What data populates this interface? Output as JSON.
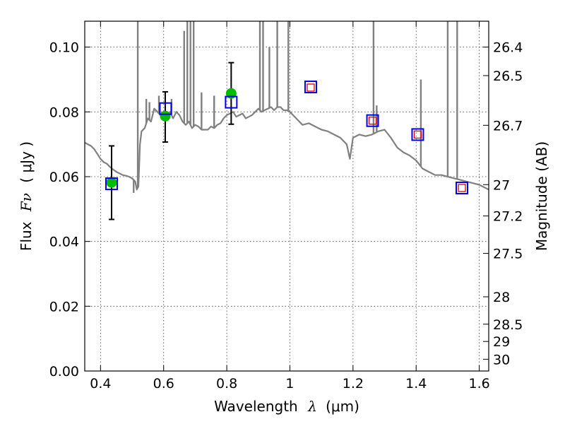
{
  "chart_data": {
    "type": "scatter",
    "title": "",
    "xlabel": {
      "prefix": "Wavelength",
      "symbol": "λ",
      "unit": "(μm)"
    },
    "ylabel": {
      "prefix": "Flux",
      "symbol": "Fν",
      "unit": "( μJy )"
    },
    "ylabel_right": "Magnitude (AB)",
    "xlim": [
      0.35,
      1.63
    ],
    "ylim": [
      0.0,
      0.108
    ],
    "grid": true,
    "xticks": [
      {
        "value": 0.4,
        "label": "0.4"
      },
      {
        "value": 0.6,
        "label": "0.6"
      },
      {
        "value": 0.8,
        "label": "0.8"
      },
      {
        "value": 1.0,
        "label": "1"
      },
      {
        "value": 1.2,
        "label": "1.2"
      },
      {
        "value": 1.4,
        "label": "1.4"
      },
      {
        "value": 1.6,
        "label": "1.6"
      }
    ],
    "yticks": [
      {
        "value": 0.0,
        "label": "0.00"
      },
      {
        "value": 0.02,
        "label": "0.02"
      },
      {
        "value": 0.04,
        "label": "0.04"
      },
      {
        "value": 0.06,
        "label": "0.06"
      },
      {
        "value": 0.08,
        "label": "0.08"
      },
      {
        "value": 0.1,
        "label": "0.10"
      }
    ],
    "yticks_right": [
      {
        "mag": 26.4,
        "label": "26.4"
      },
      {
        "mag": 26.5,
        "label": "26.5"
      },
      {
        "mag": 26.7,
        "label": "26.7"
      },
      {
        "mag": 27,
        "label": "27"
      },
      {
        "mag": 27.2,
        "label": "27.2"
      },
      {
        "mag": 27.5,
        "label": "27.5"
      },
      {
        "mag": 28,
        "label": "28"
      },
      {
        "mag": 28.5,
        "label": "28.5"
      },
      {
        "mag": 29,
        "label": "29"
      },
      {
        "mag": 30,
        "label": "30"
      }
    ],
    "model_spectrum": {
      "color": "#808080",
      "x": [
        0.35,
        0.36,
        0.37,
        0.38,
        0.39,
        0.4,
        0.41,
        0.42,
        0.43,
        0.44,
        0.45,
        0.46,
        0.47,
        0.48,
        0.49,
        0.5,
        0.51,
        0.515,
        0.52,
        0.525,
        0.53,
        0.54,
        0.55,
        0.56,
        0.57,
        0.58,
        0.59,
        0.6,
        0.61,
        0.62,
        0.63,
        0.64,
        0.65,
        0.66,
        0.67,
        0.68,
        0.69,
        0.7,
        0.71,
        0.72,
        0.73,
        0.74,
        0.75,
        0.76,
        0.77,
        0.78,
        0.79,
        0.8,
        0.81,
        0.82,
        0.83,
        0.84,
        0.85,
        0.86,
        0.87,
        0.88,
        0.89,
        0.9,
        0.91,
        0.92,
        0.93,
        0.94,
        0.95,
        0.96,
        0.97,
        0.98,
        0.99,
        1.0,
        1.02,
        1.04,
        1.06,
        1.08,
        1.1,
        1.12,
        1.14,
        1.16,
        1.18,
        1.19,
        1.2,
        1.22,
        1.24,
        1.26,
        1.28,
        1.3,
        1.32,
        1.34,
        1.36,
        1.38,
        1.4,
        1.42,
        1.44,
        1.46,
        1.48,
        1.5,
        1.52,
        1.54,
        1.56,
        1.58,
        1.6,
        1.63
      ],
      "y": [
        0.0705,
        0.07,
        0.0695,
        0.0685,
        0.067,
        0.0655,
        0.0645,
        0.064,
        0.063,
        0.0622,
        0.0615,
        0.061,
        0.0605,
        0.0603,
        0.06,
        0.0595,
        0.0585,
        0.056,
        0.057,
        0.07,
        0.074,
        0.075,
        0.078,
        0.077,
        0.081,
        0.08,
        0.079,
        0.0795,
        0.0785,
        0.08,
        0.078,
        0.08,
        0.079,
        0.077,
        0.076,
        0.077,
        0.075,
        0.076,
        0.0755,
        0.0745,
        0.0745,
        0.0745,
        0.0755,
        0.075,
        0.076,
        0.0765,
        0.078,
        0.079,
        0.0795,
        0.08,
        0.0785,
        0.079,
        0.0795,
        0.078,
        0.0785,
        0.079,
        0.08,
        0.081,
        0.08,
        0.0805,
        0.081,
        0.0815,
        0.0805,
        0.0815,
        0.0815,
        0.0805,
        0.0805,
        0.08,
        0.078,
        0.076,
        0.0765,
        0.0755,
        0.0745,
        0.074,
        0.073,
        0.072,
        0.07,
        0.0655,
        0.072,
        0.073,
        0.0725,
        0.073,
        0.074,
        0.0745,
        0.072,
        0.069,
        0.0675,
        0.0665,
        0.065,
        0.0625,
        0.0615,
        0.0605,
        0.0605,
        0.06,
        0.0595,
        0.059,
        0.0585,
        0.058,
        0.0575,
        0.056
      ]
    },
    "emission_spikes": [
      {
        "x": 0.505,
        "top": 0.055
      },
      {
        "x": 0.518,
        "top": 0.12
      },
      {
        "x": 0.545,
        "top": 0.084
      },
      {
        "x": 0.555,
        "top": 0.083
      },
      {
        "x": 0.585,
        "top": 0.085
      },
      {
        "x": 0.625,
        "top": 0.084
      },
      {
        "x": 0.665,
        "top": 0.105
      },
      {
        "x": 0.675,
        "top": 0.12
      },
      {
        "x": 0.685,
        "top": 0.12
      },
      {
        "x": 0.695,
        "top": 0.11
      },
      {
        "x": 0.72,
        "top": 0.086
      },
      {
        "x": 0.76,
        "top": 0.085
      },
      {
        "x": 0.905,
        "top": 0.12
      },
      {
        "x": 0.915,
        "top": 0.12
      },
      {
        "x": 0.935,
        "top": 0.1
      },
      {
        "x": 0.96,
        "top": 0.12
      },
      {
        "x": 0.995,
        "top": 0.12
      },
      {
        "x": 1.265,
        "top": 0.12
      },
      {
        "x": 1.275,
        "top": 0.082
      },
      {
        "x": 1.415,
        "top": 0.09
      },
      {
        "x": 1.5,
        "top": 0.12
      },
      {
        "x": 1.53,
        "top": 0.108
      }
    ],
    "series": [
      {
        "marker": "circle",
        "color": "#00bb00",
        "points": [
          {
            "x": 0.435,
            "y": 0.0582,
            "yerr_lo": 0.0468,
            "yerr_hi": 0.0695
          },
          {
            "x": 0.605,
            "y": 0.0787,
            "yerr_lo": 0.0707,
            "yerr_hi": 0.0862
          },
          {
            "x": 0.814,
            "y": 0.0857,
            "yerr_lo": 0.0762,
            "yerr_hi": 0.0952
          }
        ]
      },
      {
        "marker": "square-open",
        "color": "#0000ee",
        "points": [
          {
            "x": 0.435,
            "y": 0.0578
          },
          {
            "x": 0.606,
            "y": 0.081
          },
          {
            "x": 0.814,
            "y": 0.083
          },
          {
            "x": 1.066,
            "y": 0.0877
          },
          {
            "x": 1.262,
            "y": 0.0773
          },
          {
            "x": 1.405,
            "y": 0.073
          },
          {
            "x": 1.545,
            "y": 0.0565
          }
        ]
      },
      {
        "marker": "square-open-small",
        "color": "#dd0000",
        "points": [
          {
            "x": 1.066,
            "y": 0.0875
          },
          {
            "x": 1.262,
            "y": 0.0773
          },
          {
            "x": 1.405,
            "y": 0.073
          },
          {
            "x": 1.545,
            "y": 0.0565
          }
        ]
      }
    ]
  }
}
